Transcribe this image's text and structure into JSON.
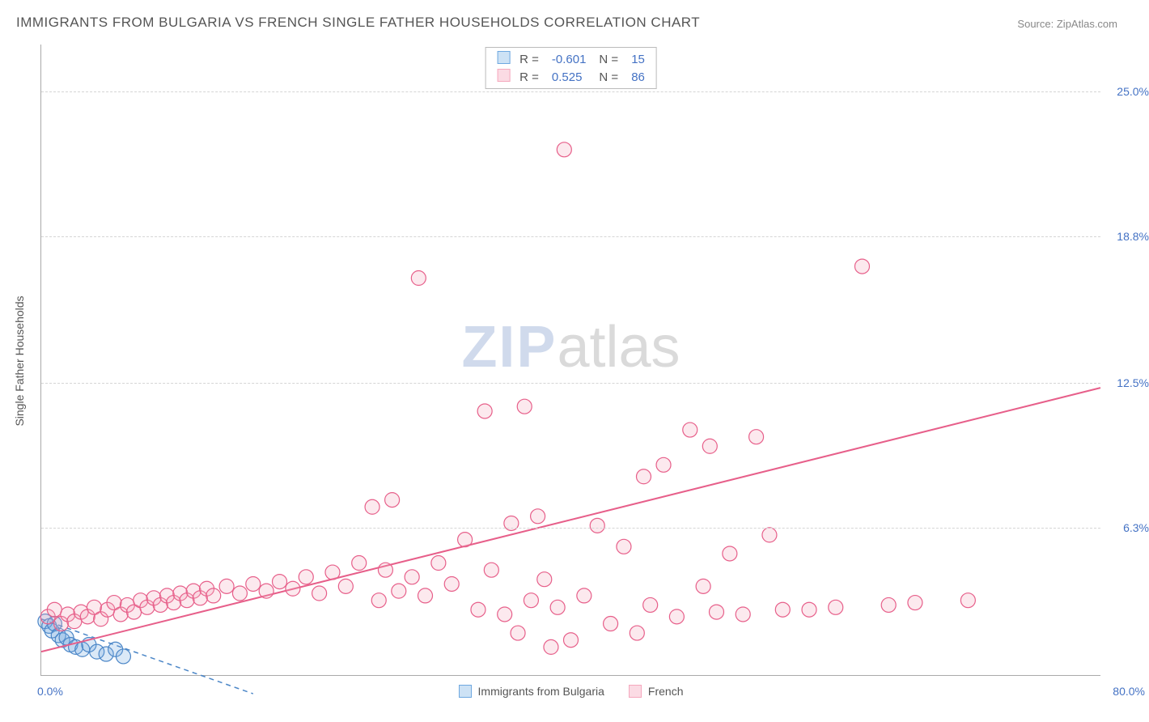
{
  "title": "IMMIGRANTS FROM BULGARIA VS FRENCH SINGLE FATHER HOUSEHOLDS CORRELATION CHART",
  "source_label": "Source:",
  "source_value": "ZipAtlas.com",
  "watermark": {
    "part1": "ZIP",
    "part2": "atlas"
  },
  "ylabel": "Single Father Households",
  "chart": {
    "type": "scatter",
    "background_color": "#ffffff",
    "grid_color": "#d5d5d5",
    "grid_dash": "4,4",
    "axis_color": "#aaaaaa",
    "xlim": [
      0,
      80
    ],
    "ylim": [
      0,
      27
    ],
    "yticks": [
      {
        "value": 6.3,
        "label": "6.3%"
      },
      {
        "value": 12.5,
        "label": "12.5%"
      },
      {
        "value": 18.8,
        "label": "18.8%"
      },
      {
        "value": 25.0,
        "label": "25.0%"
      }
    ],
    "x_left_label": "0.0%",
    "x_right_label": "80.0%",
    "tick_fontsize": 14,
    "tick_color": "#4472c4",
    "label_fontsize": 14,
    "label_color": "#555555",
    "marker_radius": 9,
    "marker_stroke_width": 1.2,
    "marker_fill_opacity": 0.25,
    "series": [
      {
        "name": "Immigrants from Bulgaria",
        "color": "#6ea8e0",
        "stroke": "#4b86c7",
        "R": "-0.601",
        "N": "15",
        "trend": {
          "x1": 0,
          "y1": 2.4,
          "x2": 16,
          "y2": -0.8,
          "dash": "6,5",
          "width": 1.5
        },
        "points": [
          [
            0.3,
            2.3
          ],
          [
            0.6,
            2.1
          ],
          [
            0.8,
            1.9
          ],
          [
            1.0,
            2.2
          ],
          [
            1.3,
            1.7
          ],
          [
            1.6,
            1.5
          ],
          [
            1.9,
            1.6
          ],
          [
            2.2,
            1.3
          ],
          [
            2.6,
            1.2
          ],
          [
            3.1,
            1.1
          ],
          [
            3.6,
            1.3
          ],
          [
            4.2,
            1.0
          ],
          [
            4.9,
            0.9
          ],
          [
            5.6,
            1.1
          ],
          [
            6.2,
            0.8
          ]
        ]
      },
      {
        "name": "French",
        "color": "#f5a8bd",
        "stroke": "#e75f8a",
        "R": "0.525",
        "N": "86",
        "trend": {
          "x1": 0,
          "y1": 1.0,
          "x2": 80,
          "y2": 12.3,
          "dash": "none",
          "width": 2
        },
        "points": [
          [
            0.5,
            2.5
          ],
          [
            1.0,
            2.8
          ],
          [
            1.5,
            2.2
          ],
          [
            2.0,
            2.6
          ],
          [
            2.5,
            2.3
          ],
          [
            3.0,
            2.7
          ],
          [
            3.5,
            2.5
          ],
          [
            4.0,
            2.9
          ],
          [
            4.5,
            2.4
          ],
          [
            5.0,
            2.8
          ],
          [
            5.5,
            3.1
          ],
          [
            6.0,
            2.6
          ],
          [
            6.5,
            3.0
          ],
          [
            7.0,
            2.7
          ],
          [
            7.5,
            3.2
          ],
          [
            8.0,
            2.9
          ],
          [
            8.5,
            3.3
          ],
          [
            9.0,
            3.0
          ],
          [
            9.5,
            3.4
          ],
          [
            10.0,
            3.1
          ],
          [
            10.5,
            3.5
          ],
          [
            11.0,
            3.2
          ],
          [
            11.5,
            3.6
          ],
          [
            12.0,
            3.3
          ],
          [
            12.5,
            3.7
          ],
          [
            13.0,
            3.4
          ],
          [
            14.0,
            3.8
          ],
          [
            15.0,
            3.5
          ],
          [
            16.0,
            3.9
          ],
          [
            17.0,
            3.6
          ],
          [
            18.0,
            4.0
          ],
          [
            19.0,
            3.7
          ],
          [
            20.0,
            4.2
          ],
          [
            21.0,
            3.5
          ],
          [
            22.0,
            4.4
          ],
          [
            23.0,
            3.8
          ],
          [
            24.0,
            4.8
          ],
          [
            25.0,
            7.2
          ],
          [
            25.5,
            3.2
          ],
          [
            26.0,
            4.5
          ],
          [
            26.5,
            7.5
          ],
          [
            27.0,
            3.6
          ],
          [
            28.0,
            4.2
          ],
          [
            28.5,
            17.0
          ],
          [
            29.0,
            3.4
          ],
          [
            30.0,
            4.8
          ],
          [
            31.0,
            3.9
          ],
          [
            32.0,
            5.8
          ],
          [
            33.0,
            2.8
          ],
          [
            33.5,
            11.3
          ],
          [
            34.0,
            4.5
          ],
          [
            35.0,
            2.6
          ],
          [
            35.5,
            6.5
          ],
          [
            36.0,
            1.8
          ],
          [
            36.5,
            11.5
          ],
          [
            37.0,
            3.2
          ],
          [
            37.5,
            6.8
          ],
          [
            38.0,
            4.1
          ],
          [
            38.5,
            1.2
          ],
          [
            39.0,
            2.9
          ],
          [
            39.5,
            22.5
          ],
          [
            40.0,
            1.5
          ],
          [
            41.0,
            3.4
          ],
          [
            42.0,
            6.4
          ],
          [
            43.0,
            2.2
          ],
          [
            44.0,
            5.5
          ],
          [
            45.0,
            1.8
          ],
          [
            45.5,
            8.5
          ],
          [
            46.0,
            3.0
          ],
          [
            47.0,
            9.0
          ],
          [
            48.0,
            2.5
          ],
          [
            49.0,
            10.5
          ],
          [
            50.0,
            3.8
          ],
          [
            50.5,
            9.8
          ],
          [
            51.0,
            2.7
          ],
          [
            52.0,
            5.2
          ],
          [
            53.0,
            2.6
          ],
          [
            54.0,
            10.2
          ],
          [
            55.0,
            6.0
          ],
          [
            56.0,
            2.8
          ],
          [
            58.0,
            2.8
          ],
          [
            60.0,
            2.9
          ],
          [
            62.0,
            17.5
          ],
          [
            64.0,
            3.0
          ],
          [
            66.0,
            3.1
          ],
          [
            70.0,
            3.2
          ]
        ]
      }
    ]
  },
  "legend_bottom": [
    {
      "label": "Immigrants from Bulgaria",
      "fill": "#cde2f5",
      "stroke": "#6ea8e0"
    },
    {
      "label": "French",
      "fill": "#fbdbe4",
      "stroke": "#f5a8bd"
    }
  ],
  "legend_top_headers": {
    "R": "R =",
    "N": "N ="
  }
}
